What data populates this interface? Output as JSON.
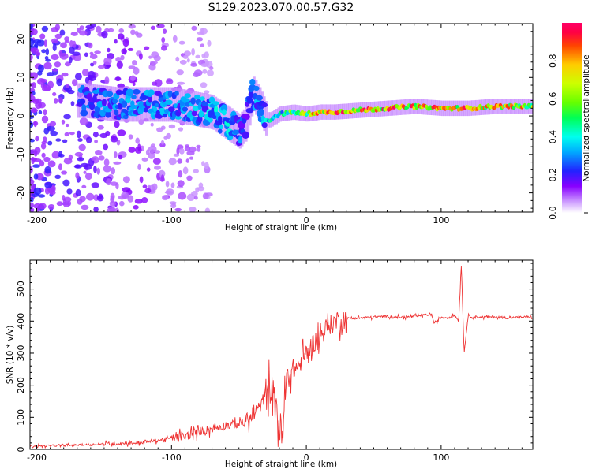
{
  "title": "S129.2023.070.00.57.G32",
  "chart_data": [
    {
      "type": "heatmap",
      "name": "spectrogram",
      "xlabel": "Height of straight line (km)",
      "ylabel": "Frequency (Hz)",
      "xlim": [
        -205,
        168
      ],
      "ylim": [
        -25,
        24
      ],
      "xticks": [
        -200,
        -100,
        0,
        100
      ],
      "yticks": [
        -20,
        -10,
        0,
        10,
        20
      ],
      "colorbar": {
        "label": "Normalized spectral amplitude",
        "range": [
          0,
          1
        ],
        "ticks": [
          "0.0",
          "0.2",
          "0.4",
          "0.6",
          "0.8"
        ],
        "tick_values": [
          0,
          0.2,
          0.4,
          0.6,
          0.8
        ]
      },
      "ridge": {
        "x": [
          -165,
          -140,
          -120,
          -100,
          -85,
          -70,
          -58,
          -50,
          -45,
          -40,
          -35,
          -30,
          -27,
          -20,
          -10,
          0,
          10,
          20,
          40,
          60,
          80,
          100,
          120,
          140,
          168
        ],
        "y": [
          4,
          3,
          3,
          3,
          2,
          1,
          -2,
          -4,
          -2,
          6,
          3,
          -1,
          -1,
          0.5,
          1,
          0.5,
          1,
          1,
          1.5,
          2,
          2.5,
          2,
          2,
          2.5,
          2.5
        ],
        "amplitude": [
          0.25,
          0.3,
          0.3,
          0.3,
          0.3,
          0.35,
          0.35,
          0.3,
          0.25,
          0.3,
          0.3,
          0.35,
          0.4,
          0.4,
          0.6,
          0.7,
          0.85,
          0.9,
          0.85,
          0.9,
          0.85,
          0.85,
          0.85,
          0.8,
          0.75
        ]
      }
    },
    {
      "type": "line",
      "name": "snr",
      "xlabel": "Height of straight line (km)",
      "ylabel": "SNR (10 * v/v)",
      "xlim": [
        -205,
        168
      ],
      "ylim": [
        0,
        590
      ],
      "xticks": [
        -200,
        -100,
        0,
        100
      ],
      "yticks": [
        0,
        100,
        200,
        300,
        400,
        500
      ],
      "series": [
        {
          "name": "SNR",
          "color": "#ee3333",
          "x": [
            -205,
            -180,
            -160,
            -140,
            -120,
            -100,
            -90,
            -80,
            -70,
            -60,
            -50,
            -40,
            -35,
            -30,
            -28,
            -25,
            -22,
            -20,
            -17,
            -15,
            -10,
            -5,
            0,
            5,
            10,
            15,
            20,
            25,
            30,
            40,
            50,
            60,
            70,
            80,
            90,
            93,
            95,
            100,
            105,
            110,
            113,
            115,
            117,
            120,
            130,
            140,
            150,
            168
          ],
          "y": [
            10,
            12,
            15,
            18,
            22,
            35,
            40,
            55,
            65,
            75,
            80,
            100,
            130,
            170,
            230,
            160,
            140,
            60,
            40,
            220,
            250,
            260,
            300,
            330,
            350,
            380,
            395,
            405,
            408,
            410,
            412,
            415,
            412,
            414,
            420,
            420,
            390,
            412,
            410,
            418,
            400,
            580,
            300,
            415,
            412,
            413,
            410,
            414
          ]
        }
      ]
    }
  ]
}
